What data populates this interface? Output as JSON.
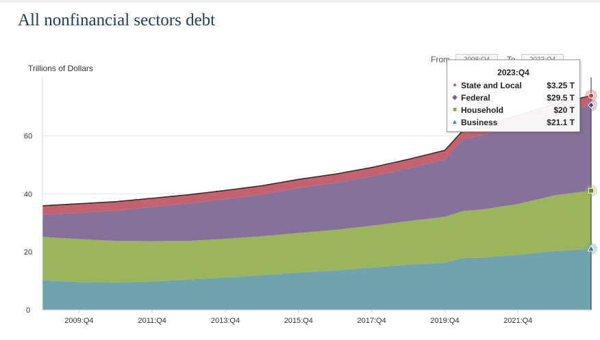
{
  "title": "All nonfinancial sectors debt",
  "range": {
    "from_label": "From",
    "from_value": "2008:Q4",
    "to_label": "To",
    "to_value": "2023:Q4"
  },
  "chart_data": {
    "type": "area",
    "stacked": true,
    "ylabel": "Trillions of Dollars",
    "ylim": [
      0,
      80
    ],
    "yticks": [
      0,
      20,
      40,
      60
    ],
    "x_start": "2008:Q4",
    "x_end": "2023:Q4",
    "quarters_count": 61,
    "xtick_labels": [
      "2009:Q4",
      "2011:Q4",
      "2013:Q4",
      "2015:Q4",
      "2017:Q4",
      "2019:Q4",
      "2021:Q4"
    ],
    "xtick_index": [
      4,
      12,
      20,
      28,
      36,
      44,
      52
    ],
    "series": [
      {
        "name": "Business",
        "color": "#6fa3b0",
        "marker": "triangle",
        "points": [
          [
            0,
            10.2
          ],
          [
            4,
            9.6
          ],
          [
            8,
            9.5
          ],
          [
            12,
            9.8
          ],
          [
            16,
            10.5
          ],
          [
            20,
            11.2
          ],
          [
            24,
            12.0
          ],
          [
            28,
            12.9
          ],
          [
            32,
            13.6
          ],
          [
            36,
            14.6
          ],
          [
            40,
            15.6
          ],
          [
            44,
            16.3
          ],
          [
            46,
            17.9
          ],
          [
            48,
            18.0
          ],
          [
            52,
            19.0
          ],
          [
            56,
            20.3
          ],
          [
            60,
            21.1
          ]
        ]
      },
      {
        "name": "Household",
        "color": "#9cb45c",
        "marker": "square",
        "points": [
          [
            0,
            15.0
          ],
          [
            4,
            14.8
          ],
          [
            8,
            14.3
          ],
          [
            12,
            13.9
          ],
          [
            16,
            13.3
          ],
          [
            20,
            13.3
          ],
          [
            24,
            13.4
          ],
          [
            28,
            13.6
          ],
          [
            32,
            14.0
          ],
          [
            36,
            14.4
          ],
          [
            40,
            15.0
          ],
          [
            44,
            15.8
          ],
          [
            46,
            16.2
          ],
          [
            48,
            16.6
          ],
          [
            52,
            17.5
          ],
          [
            56,
            19.2
          ],
          [
            60,
            20.0
          ]
        ]
      },
      {
        "name": "Federal",
        "color": "#87709a",
        "marker": "diamond",
        "points": [
          [
            0,
            7.7
          ],
          [
            4,
            9.1
          ],
          [
            8,
            10.4
          ],
          [
            12,
            11.8
          ],
          [
            16,
            12.9
          ],
          [
            20,
            13.7
          ],
          [
            24,
            14.4
          ],
          [
            28,
            15.5
          ],
          [
            32,
            16.2
          ],
          [
            36,
            17.0
          ],
          [
            40,
            18.2
          ],
          [
            44,
            19.7
          ],
          [
            46,
            24.6
          ],
          [
            48,
            25.6
          ],
          [
            52,
            27.2
          ],
          [
            56,
            28.2
          ],
          [
            60,
            29.5
          ]
        ]
      },
      {
        "name": "State and Local",
        "color": "#c4636f",
        "marker": "circle",
        "points": [
          [
            0,
            3.0
          ],
          [
            4,
            3.1
          ],
          [
            8,
            3.1
          ],
          [
            12,
            3.0
          ],
          [
            16,
            3.0
          ],
          [
            20,
            3.0
          ],
          [
            24,
            3.0
          ],
          [
            28,
            3.0
          ],
          [
            32,
            3.0
          ],
          [
            36,
            3.1
          ],
          [
            40,
            3.1
          ],
          [
            44,
            3.2
          ],
          [
            46,
            3.2
          ],
          [
            48,
            3.3
          ],
          [
            52,
            3.3
          ],
          [
            56,
            3.3
          ],
          [
            60,
            3.25
          ]
        ]
      }
    ],
    "tooltip": {
      "header": "2023:Q4",
      "rows": [
        {
          "name": "State and Local",
          "value": "$3.25 T",
          "symbol": "●",
          "color": "#c4636f"
        },
        {
          "name": "Federal",
          "value": "$29.5 T",
          "symbol": "◆",
          "color": "#7a5f8e"
        },
        {
          "name": "Household",
          "value": "$20 T",
          "symbol": "■",
          "color": "#87a23a"
        },
        {
          "name": "Business",
          "value": "$21.1 T",
          "symbol": "▲",
          "color": "#4f8796"
        }
      ]
    }
  }
}
